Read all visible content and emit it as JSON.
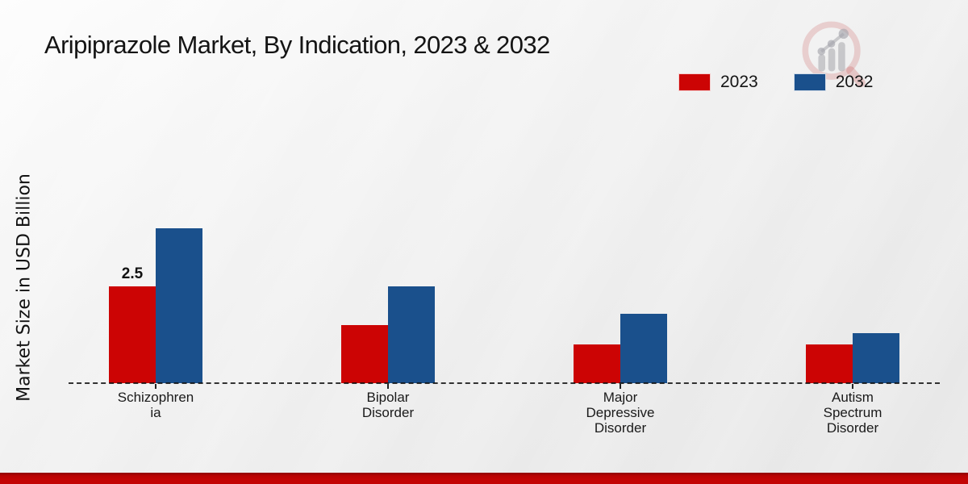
{
  "title": "Aripiprazole Market, By Indication, 2023 & 2032",
  "ylabel": "Market Size in USD Billion",
  "legend": [
    {
      "label": "2023",
      "color": "#cc0404"
    },
    {
      "label": "2032",
      "color": "#1a508c"
    }
  ],
  "colors": {
    "bar_2023": "#cc0404",
    "bar_2032": "#1a508c",
    "footer_red": "#c30404",
    "text": "#141414"
  },
  "icons": {
    "logo": "magnifier-growth-chart-watermark"
  },
  "chart_data": {
    "type": "bar",
    "title": "Aripiprazole Market, By Indication, 2023 & 2032",
    "xlabel": "",
    "ylabel": "Market Size in USD Billion",
    "ylim": [
      0,
      4.5
    ],
    "grid": false,
    "baseline_style": "dashed",
    "legend_position": "top-right",
    "categories": [
      "Schizophrenia",
      "Bipolar Disorder",
      "Major Depressive Disorder",
      "Autism Spectrum Disorder"
    ],
    "category_label_lines": [
      [
        "Schizophren",
        "ia"
      ],
      [
        "Bipolar",
        "Disorder"
      ],
      [
        "Major",
        "Depressive",
        "Disorder"
      ],
      [
        "Autism",
        "Spectrum",
        "Disorder"
      ]
    ],
    "series": [
      {
        "name": "2023",
        "color": "#cc0404",
        "values": [
          2.5,
          1.5,
          1.0,
          1.0
        ]
      },
      {
        "name": "2032",
        "color": "#1a508c",
        "values": [
          4.0,
          2.5,
          1.8,
          1.3
        ]
      }
    ],
    "annotations": [
      {
        "series_index": 0,
        "category_index": 0,
        "text": "2.5"
      }
    ]
  }
}
